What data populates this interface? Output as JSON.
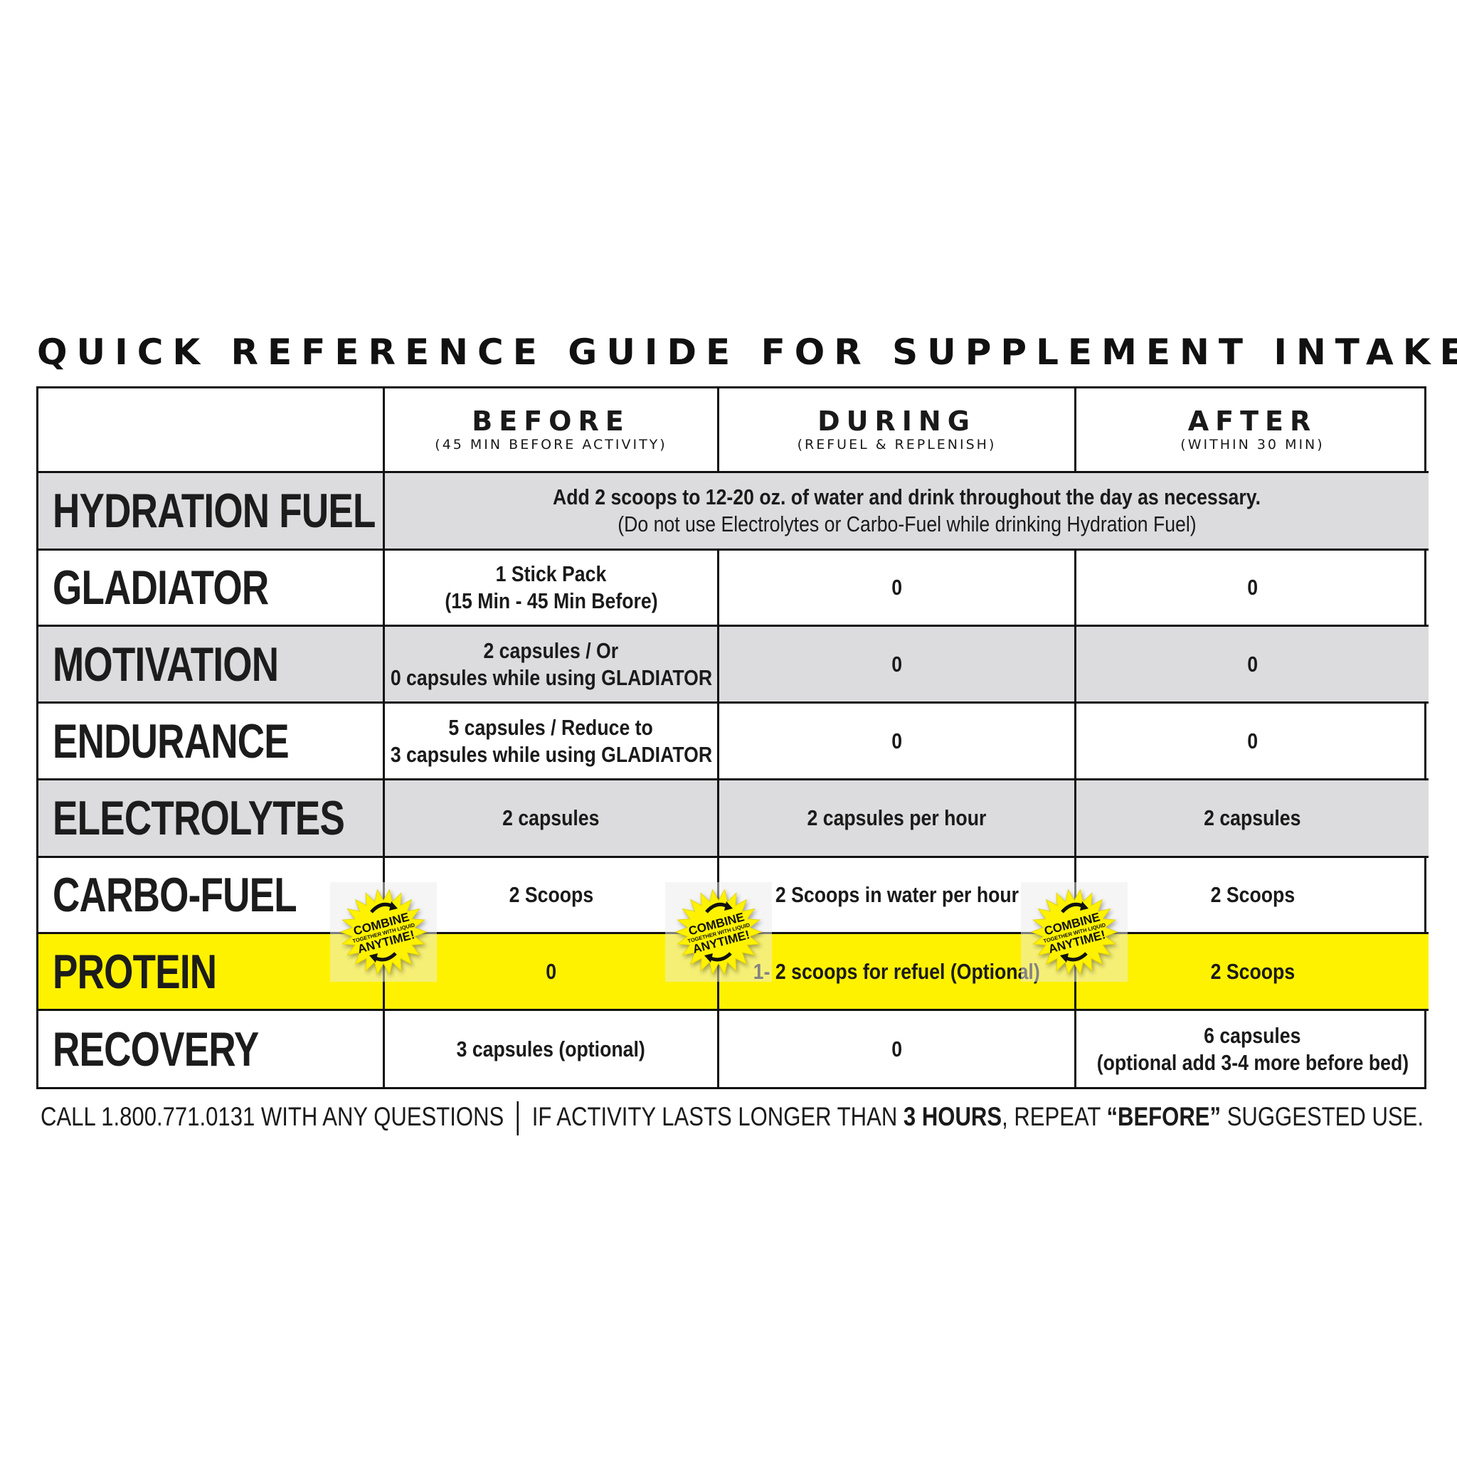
{
  "title": "QUICK REFERENCE GUIDE FOR SUPPLEMENT INTAKE",
  "colors": {
    "gray_row": "#dcdcde",
    "highlight_row": "#fff200",
    "border": "#111111",
    "badge": "#fff200"
  },
  "columns": [
    {
      "title": "BEFORE",
      "subtitle": "(45 MIN BEFORE ACTIVITY)"
    },
    {
      "title": "DURING",
      "subtitle": "(REFUEL & REPLENISH)"
    },
    {
      "title": "AFTER",
      "subtitle": "(WITHIN 30 MIN)"
    }
  ],
  "hydration": {
    "label": "HYDRATION FUEL",
    "line1": "Add 2 scoops to 12-20 oz. of water and drink throughout the day as necessary.",
    "line2": "(Do not use Electrolytes or Carbo-Fuel while drinking Hydration Fuel)"
  },
  "rows": [
    {
      "label": "GLADIATOR",
      "before": [
        "1 Stick Pack",
        "(15 Min - 45 Min Before)"
      ],
      "during": "0",
      "after": [
        "0"
      ]
    },
    {
      "label": "MOTIVATION",
      "before": [
        "2 capsules / Or",
        "0 capsules while using GLADIATOR"
      ],
      "during": "0",
      "after": [
        "0"
      ]
    },
    {
      "label": "ENDURANCE",
      "before": [
        "5 capsules / Reduce to",
        "3 capsules while using GLADIATOR"
      ],
      "during": "0",
      "after": [
        "0"
      ]
    },
    {
      "label": "ELECTROLYTES",
      "before": [
        "2 capsules"
      ],
      "during": "2 capsules per hour",
      "after": [
        "2 capsules"
      ]
    },
    {
      "label": "CARBO-FUEL",
      "before": [
        "2 Scoops"
      ],
      "during": "2 Scoops in water per hour",
      "after": [
        "2 Scoops"
      ]
    },
    {
      "label": "PROTEIN",
      "before": [
        "0"
      ],
      "during": "1- 2 scoops for refuel (Optional)",
      "after": [
        "2 Scoops"
      ]
    },
    {
      "label": "RECOVERY",
      "before": [
        "3 capsules (optional)"
      ],
      "during": "0",
      "after": [
        "6 capsules",
        "(optional add 3-4 more before bed)"
      ]
    }
  ],
  "badge": {
    "line1": "COMBINE",
    "line2": "TOGETHER WITH LIQUID",
    "line3": "ANYTIME!",
    "icon": "starburst-with-arrows"
  },
  "footer": {
    "call": "CALL 1.800.771.0131 WITH ANY QUESTIONS",
    "part1": "IF ACTIVITY LASTS LONGER THAN ",
    "bold1": "3 HOURS",
    "part2": ", REPEAT ",
    "bold2": "“BEFORE”",
    "part3": " SUGGESTED USE."
  }
}
